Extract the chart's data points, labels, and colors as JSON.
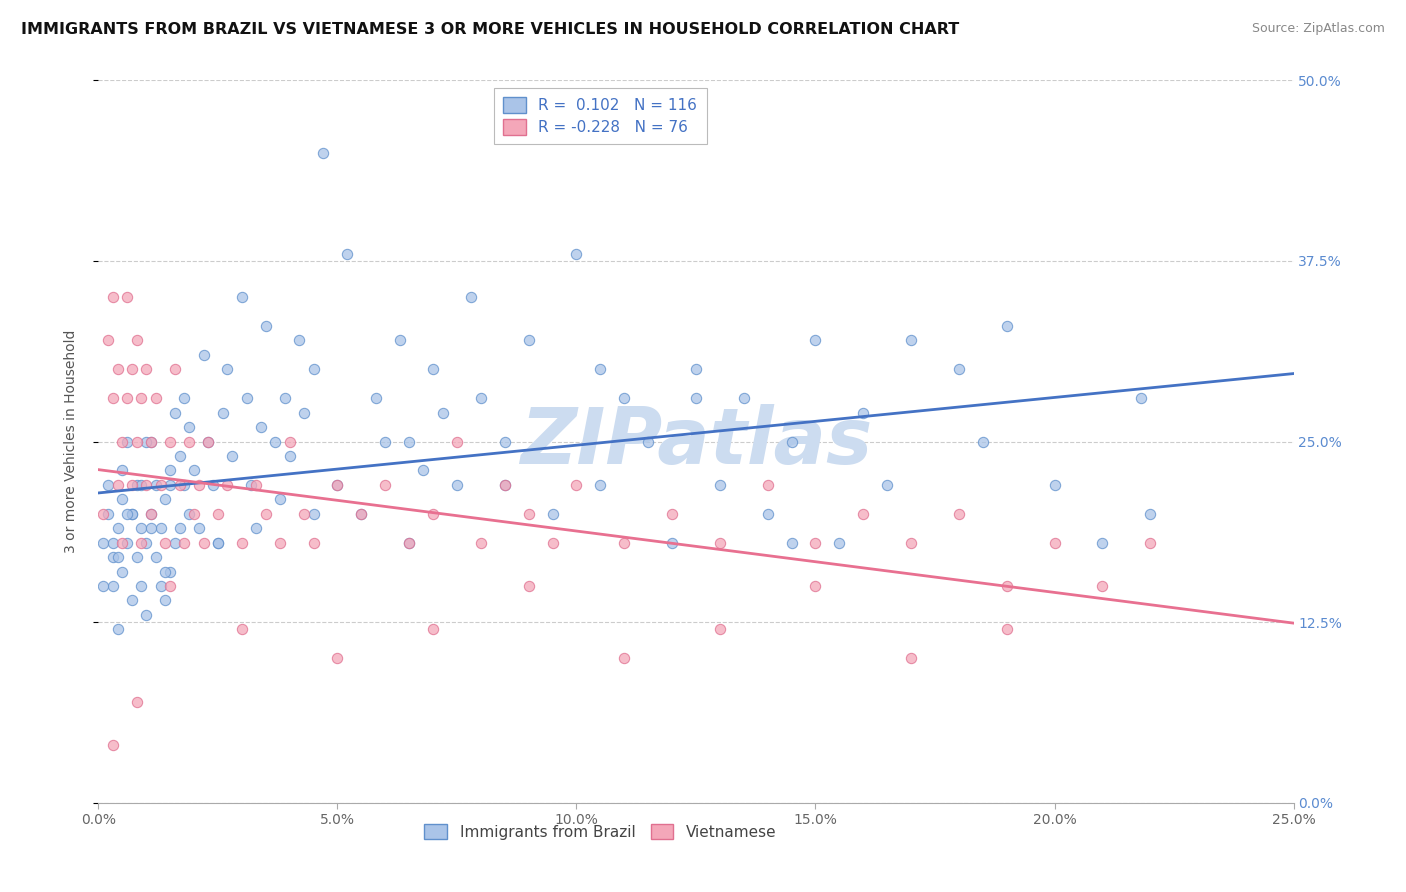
{
  "title": "IMMIGRANTS FROM BRAZIL VS VIETNAMESE 3 OR MORE VEHICLES IN HOUSEHOLD CORRELATION CHART",
  "source": "Source: ZipAtlas.com",
  "ylabel": "3 or more Vehicles in Household",
  "xlim": [
    0.0,
    0.25
  ],
  "ylim": [
    0.0,
    0.5
  ],
  "xticks": [
    0.0,
    0.05,
    0.1,
    0.15,
    0.2,
    0.25
  ],
  "xtick_labels": [
    "0.0%",
    "5.0%",
    "10.0%",
    "15.0%",
    "20.0%",
    "25.0%"
  ],
  "ytick_labels": [
    "0.0%",
    "12.5%",
    "25.0%",
    "37.5%",
    "50.0%"
  ],
  "yticks": [
    0.0,
    0.125,
    0.25,
    0.375,
    0.5
  ],
  "series1_label": "Immigrants from Brazil",
  "series2_label": "Vietnamese",
  "series1_color": "#aac4e8",
  "series2_color": "#f4a7b9",
  "series1_edge": "#6090cc",
  "series2_edge": "#e07090",
  "trend1_color": "#4472c4",
  "trend2_color": "#e87090",
  "R1": 0.102,
  "N1": 116,
  "R2": -0.228,
  "N2": 76,
  "watermark_color": "#ccdcf0",
  "title_fontsize": 11.5,
  "axis_label_fontsize": 10,
  "tick_fontsize": 10,
  "legend_fontsize": 11,
  "series1_x": [
    0.001,
    0.002,
    0.002,
    0.003,
    0.003,
    0.004,
    0.004,
    0.005,
    0.005,
    0.005,
    0.006,
    0.006,
    0.007,
    0.007,
    0.008,
    0.008,
    0.009,
    0.009,
    0.01,
    0.01,
    0.011,
    0.011,
    0.012,
    0.012,
    0.013,
    0.013,
    0.014,
    0.014,
    0.015,
    0.015,
    0.016,
    0.016,
    0.017,
    0.017,
    0.018,
    0.018,
    0.019,
    0.019,
    0.02,
    0.021,
    0.022,
    0.023,
    0.024,
    0.025,
    0.026,
    0.027,
    0.028,
    0.03,
    0.031,
    0.032,
    0.033,
    0.034,
    0.035,
    0.037,
    0.038,
    0.039,
    0.04,
    0.042,
    0.043,
    0.045,
    0.047,
    0.05,
    0.052,
    0.055,
    0.058,
    0.06,
    0.063,
    0.065,
    0.068,
    0.07,
    0.072,
    0.075,
    0.078,
    0.08,
    0.085,
    0.09,
    0.095,
    0.1,
    0.105,
    0.11,
    0.115,
    0.12,
    0.125,
    0.13,
    0.135,
    0.14,
    0.145,
    0.15,
    0.155,
    0.16,
    0.17,
    0.18,
    0.19,
    0.2,
    0.21,
    0.218,
    0.22,
    0.185,
    0.165,
    0.145,
    0.125,
    0.105,
    0.085,
    0.065,
    0.045,
    0.025,
    0.015,
    0.01,
    0.007,
    0.003,
    0.001,
    0.004,
    0.006,
    0.009,
    0.011,
    0.014
  ],
  "series1_y": [
    0.18,
    0.2,
    0.22,
    0.15,
    0.17,
    0.12,
    0.19,
    0.16,
    0.21,
    0.23,
    0.18,
    0.25,
    0.14,
    0.2,
    0.22,
    0.17,
    0.15,
    0.19,
    0.13,
    0.18,
    0.2,
    0.25,
    0.17,
    0.22,
    0.15,
    0.19,
    0.14,
    0.21,
    0.16,
    0.23,
    0.18,
    0.27,
    0.19,
    0.24,
    0.22,
    0.28,
    0.2,
    0.26,
    0.23,
    0.19,
    0.31,
    0.25,
    0.22,
    0.18,
    0.27,
    0.3,
    0.24,
    0.35,
    0.28,
    0.22,
    0.19,
    0.26,
    0.33,
    0.25,
    0.21,
    0.28,
    0.24,
    0.32,
    0.27,
    0.3,
    0.45,
    0.22,
    0.38,
    0.2,
    0.28,
    0.25,
    0.32,
    0.18,
    0.23,
    0.3,
    0.27,
    0.22,
    0.35,
    0.28,
    0.25,
    0.32,
    0.2,
    0.38,
    0.22,
    0.28,
    0.25,
    0.18,
    0.3,
    0.22,
    0.28,
    0.2,
    0.25,
    0.32,
    0.18,
    0.27,
    0.32,
    0.3,
    0.33,
    0.22,
    0.18,
    0.28,
    0.2,
    0.25,
    0.22,
    0.18,
    0.28,
    0.3,
    0.22,
    0.25,
    0.2,
    0.18,
    0.22,
    0.25,
    0.2,
    0.18,
    0.15,
    0.17,
    0.2,
    0.22,
    0.19,
    0.16
  ],
  "series2_x": [
    0.001,
    0.002,
    0.003,
    0.003,
    0.004,
    0.004,
    0.005,
    0.005,
    0.006,
    0.006,
    0.007,
    0.007,
    0.008,
    0.008,
    0.009,
    0.009,
    0.01,
    0.01,
    0.011,
    0.011,
    0.012,
    0.013,
    0.014,
    0.015,
    0.016,
    0.017,
    0.018,
    0.019,
    0.02,
    0.021,
    0.022,
    0.023,
    0.025,
    0.027,
    0.03,
    0.033,
    0.035,
    0.038,
    0.04,
    0.043,
    0.045,
    0.05,
    0.055,
    0.06,
    0.065,
    0.07,
    0.075,
    0.08,
    0.085,
    0.09,
    0.095,
    0.1,
    0.11,
    0.12,
    0.13,
    0.14,
    0.15,
    0.16,
    0.17,
    0.18,
    0.19,
    0.2,
    0.21,
    0.22,
    0.19,
    0.17,
    0.15,
    0.13,
    0.11,
    0.09,
    0.07,
    0.05,
    0.03,
    0.015,
    0.008,
    0.003
  ],
  "series2_y": [
    0.2,
    0.32,
    0.28,
    0.35,
    0.22,
    0.3,
    0.18,
    0.25,
    0.28,
    0.35,
    0.22,
    0.3,
    0.25,
    0.32,
    0.18,
    0.28,
    0.22,
    0.3,
    0.25,
    0.2,
    0.28,
    0.22,
    0.18,
    0.25,
    0.3,
    0.22,
    0.18,
    0.25,
    0.2,
    0.22,
    0.18,
    0.25,
    0.2,
    0.22,
    0.18,
    0.22,
    0.2,
    0.18,
    0.25,
    0.2,
    0.18,
    0.22,
    0.2,
    0.22,
    0.18,
    0.2,
    0.25,
    0.18,
    0.22,
    0.2,
    0.18,
    0.22,
    0.18,
    0.2,
    0.18,
    0.22,
    0.18,
    0.2,
    0.18,
    0.2,
    0.15,
    0.18,
    0.15,
    0.18,
    0.12,
    0.1,
    0.15,
    0.12,
    0.1,
    0.15,
    0.12,
    0.1,
    0.12,
    0.15,
    0.07,
    0.04
  ]
}
